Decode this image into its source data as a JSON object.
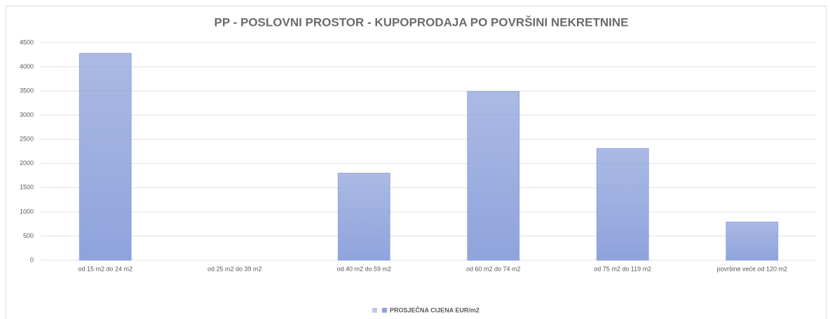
{
  "chart_data": {
    "type": "bar",
    "title": "PP - POSLOVNI PROSTOR - KUPOPRODAJA PO POVRŠINI NEKRETNINE",
    "categories": [
      "od 15 m2 do 24 m2",
      "od 25 m2 do 39 m2",
      "od 40 m2 do 59 m2",
      "od 60 m2 do 74 m2",
      "od 75 m2 do 119 m2",
      "površine veće od 120 m2"
    ],
    "series": [
      {
        "name": "PROSJEČNA CIJENA EUR/m2",
        "color": "#8fa3dc",
        "values": [
          4280,
          0,
          1800,
          3490,
          2310,
          790
        ]
      }
    ],
    "ylim": [
      0,
      4500
    ],
    "yticks": [
      0,
      500,
      1000,
      1500,
      2000,
      2500,
      3000,
      3500,
      4000,
      4500
    ],
    "grid": true
  }
}
